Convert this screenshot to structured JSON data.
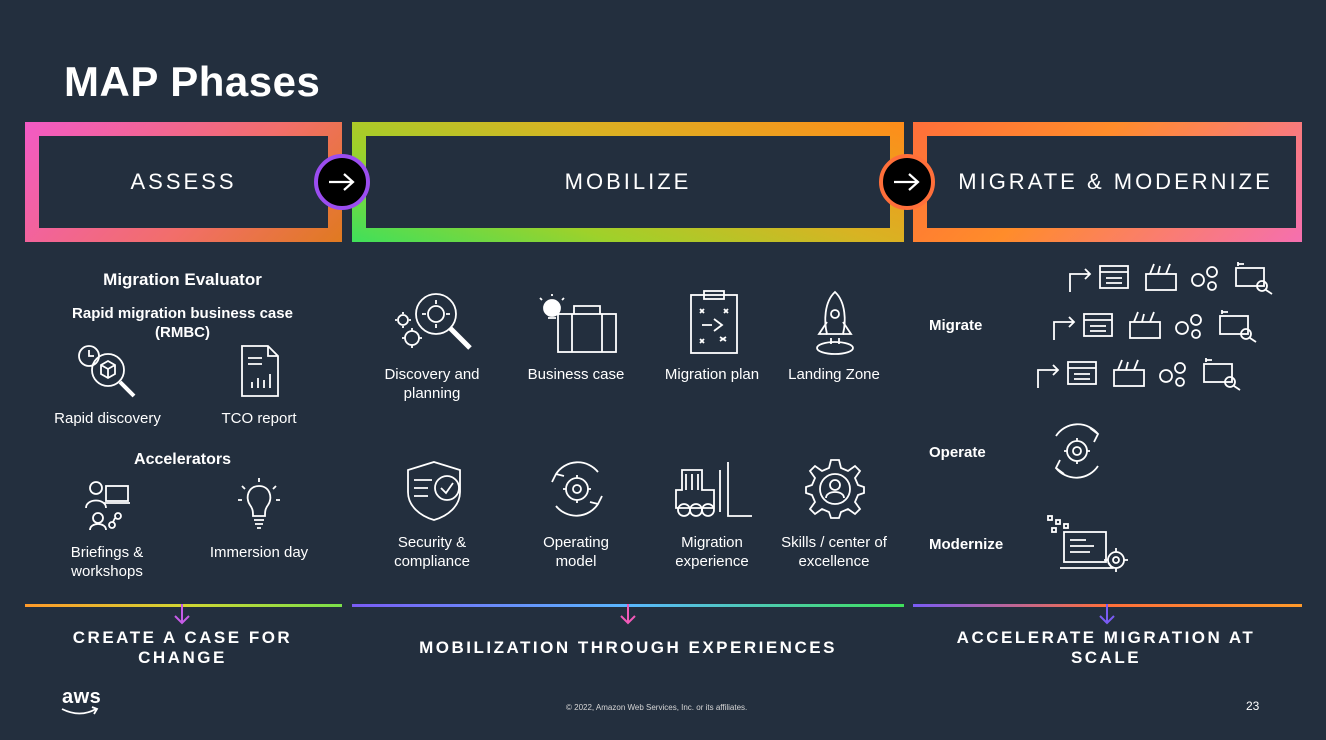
{
  "title": "MAP Phases",
  "phases": [
    {
      "label": "ASSESS"
    },
    {
      "label": "MOBILIZE"
    },
    {
      "label": "MIGRATE & MODERNIZE"
    }
  ],
  "assess": {
    "heading1": "Migration Evaluator",
    "heading2": "Rapid migration business case (RMBC)",
    "items1": [
      "Rapid discovery",
      "TCO report"
    ],
    "heading3": "Accelerators",
    "items2": [
      "Briefings & workshops",
      "Immersion day"
    ]
  },
  "mobilize": {
    "row1": [
      "Discovery and planning",
      "Business case",
      "Migration plan",
      "Landing Zone"
    ],
    "row2": [
      "Security & compliance",
      "Operating model",
      "Migration experience",
      "Skills / center of excellence"
    ]
  },
  "migrate": {
    "labels": [
      "Migrate",
      "Operate",
      "Modernize"
    ]
  },
  "bottom": [
    "CREATE A CASE FOR CHANGE",
    "MOBILIZATION THROUGH EXPERIENCES",
    "ACCELERATE MIGRATION AT SCALE"
  ],
  "footer": {
    "logo": "aws",
    "copyright": "© 2022, Amazon Web Services, Inc. or its affiliates.",
    "page": "23"
  },
  "colors": {
    "background": "#232f3e",
    "purple": "#9b4df0",
    "orange": "#ff6f3a",
    "pink": "#f35ac5",
    "green": "#3fe05b"
  }
}
